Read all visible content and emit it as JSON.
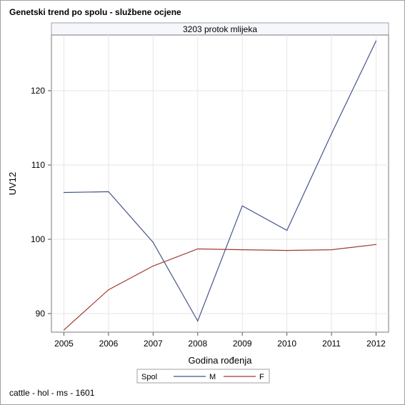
{
  "title": "Genetski trend po spolu - službene ocjene",
  "footnote": "cattle - hol - ms - 1601",
  "chart_data": {
    "type": "line",
    "panel_label": "3203 protok mlijeka",
    "x": [
      2005,
      2006,
      2007,
      2008,
      2009,
      2010,
      2011,
      2012
    ],
    "xlabel": "Godina rođenja",
    "ylabel": "UV12",
    "xlim": [
      2004.72,
      2012.28
    ],
    "ylim": [
      87.5,
      127.5
    ],
    "yticks": [
      90,
      100,
      110,
      120
    ],
    "grid": true,
    "legend": {
      "title": "Spol",
      "position": "bottom"
    },
    "series": [
      {
        "name": "M",
        "color": "#44558c",
        "values": [
          106.3,
          106.4,
          99.6,
          89.0,
          104.5,
          101.2,
          114.2,
          126.7
        ]
      },
      {
        "name": "F",
        "color": "#a23a2f",
        "values": [
          87.8,
          93.2,
          96.4,
          98.7,
          98.6,
          98.5,
          98.6,
          99.3
        ]
      }
    ]
  }
}
